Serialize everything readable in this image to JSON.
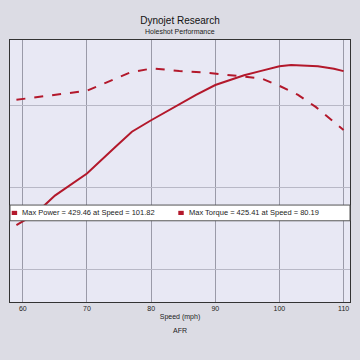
{
  "chart_data": {
    "type": "line",
    "title": "Dynojet Research",
    "subtitle": "Holeshot Performance",
    "x_label": "Speed (mph)",
    "footer": "AFR",
    "annotations": [
      "Max Power = 429.46 at Speed = 101.82",
      "Max Torque = 425.41 at Speed = 80.19"
    ],
    "xlim": [
      58,
      111
    ],
    "xticks": [
      60,
      70,
      80,
      90,
      100,
      110
    ],
    "ylim": [
      140,
      460
    ],
    "yticks": [
      180,
      280,
      380
    ],
    "grid": true,
    "tick_labels": "x",
    "series": [
      {
        "color": "#b3182b",
        "line_style": "solid",
        "x": [
          59,
          62,
          65,
          70,
          74.5,
          77,
          80,
          84,
          87,
          90,
          94.5,
          97,
          100,
          101.82,
          104,
          106,
          108.5,
          110
        ],
        "values": [
          234,
          248,
          270,
          297,
          330,
          348,
          362,
          380,
          393,
          405,
          417,
          422,
          428,
          429.46,
          429,
          428,
          425,
          422
        ]
      },
      {
        "color": "#b3182b",
        "line_style": "dashed",
        "x": [
          59,
          63,
          67.4,
          70,
          73,
          76.6,
          80.19,
          84.4,
          88.7,
          92.9,
          97.2,
          100,
          102.9,
          105.7,
          110
        ],
        "values": [
          387,
          391,
          396,
          398,
          408,
          420,
          425.41,
          422,
          420,
          417,
          413,
          404,
          393,
          378,
          350
        ]
      }
    ]
  }
}
